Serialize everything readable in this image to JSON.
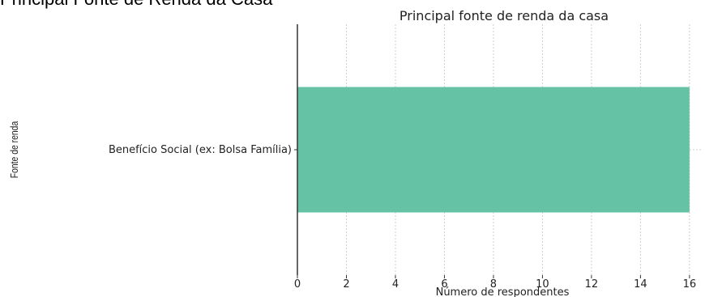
{
  "page": {
    "heading": "Principal Fonte de Renda da Casa"
  },
  "chart_data": {
    "type": "bar",
    "orientation": "horizontal",
    "title": "Principal fonte de renda da casa",
    "xlabel": "Número de respondentes",
    "ylabel": "Fonte de renda",
    "categories": [
      "Benefício Social (ex: Bolsa Família)"
    ],
    "values": [
      16
    ],
    "xlim": [
      0,
      16.5
    ],
    "xticks": [
      0,
      2,
      4,
      6,
      8,
      10,
      12,
      14,
      16
    ],
    "grid": "vertical dashed",
    "bar_color": "#66c2a5"
  }
}
